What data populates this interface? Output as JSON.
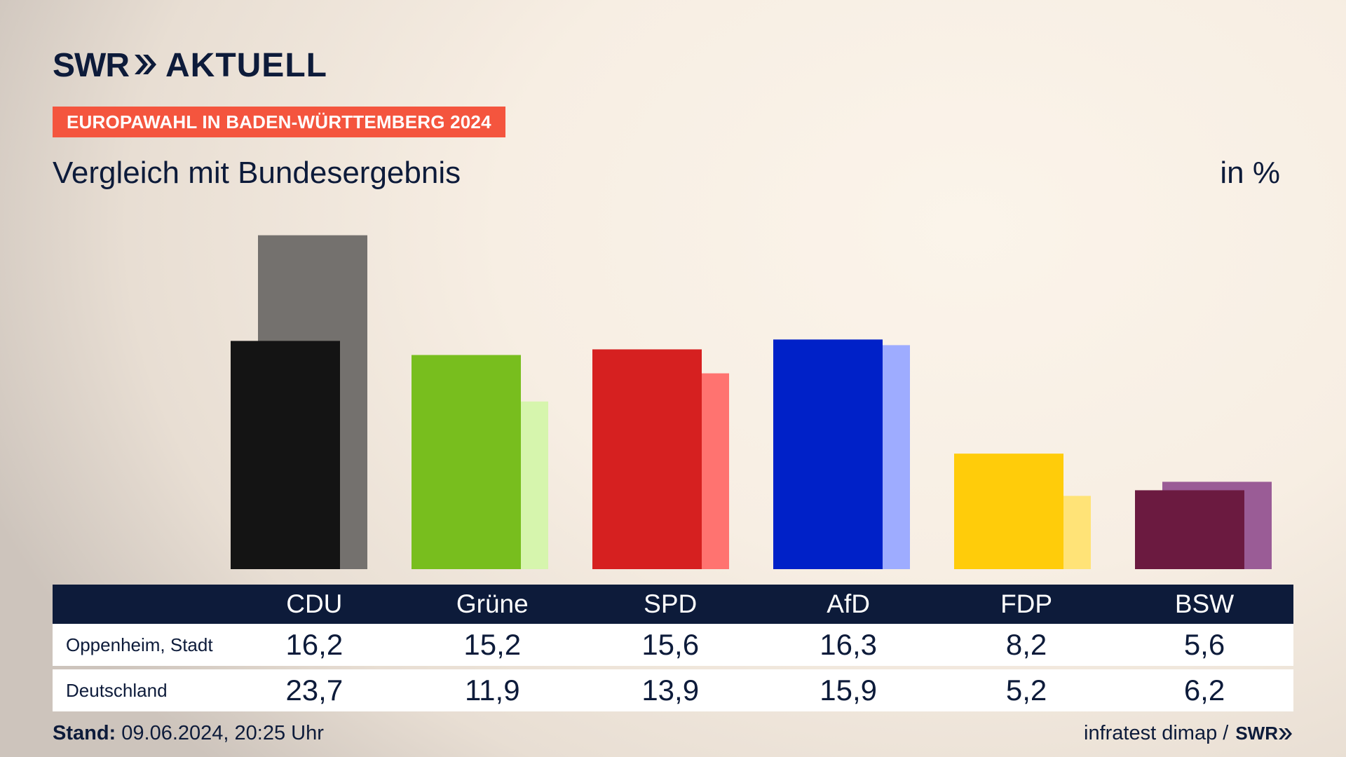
{
  "brand": {
    "logo_left": "SWR",
    "logo_right": "AKTUELL"
  },
  "badge": "EUROPAWAHL IN BADEN-WÜRTTEMBERG 2024",
  "subtitle": "Vergleich mit Bundesergebnis",
  "unit": "in %",
  "table": {
    "rows": [
      {
        "label": "Oppenheim, Stadt",
        "values": [
          "16,2",
          "15,2",
          "15,6",
          "16,3",
          "8,2",
          "5,6"
        ]
      },
      {
        "label": "Deutschland",
        "values": [
          "23,7",
          "11,9",
          "13,9",
          "15,9",
          "5,2",
          "6,2"
        ]
      }
    ]
  },
  "footer": {
    "stand_label": "Stand:",
    "stand_value": "09.06.2024, 20:25 Uhr",
    "source": "infratest dimap /",
    "source_logo": "SWR"
  },
  "chart_data": {
    "type": "bar",
    "categories": [
      "CDU",
      "Grüne",
      "SPD",
      "AfD",
      "FDP",
      "BSW"
    ],
    "series": [
      {
        "name": "Oppenheim, Stadt",
        "values": [
          16.2,
          15.2,
          15.6,
          16.3,
          8.2,
          5.6
        ]
      },
      {
        "name": "Deutschland",
        "values": [
          23.7,
          11.9,
          13.9,
          15.9,
          5.2,
          6.2
        ]
      }
    ],
    "colors_primary": [
      "#141414",
      "#78be1e",
      "#d62020",
      "#0021c8",
      "#ffcc0a",
      "#6b1a40"
    ],
    "colors_secondary": [
      "#74716e",
      "#d6f5ad",
      "#ff7370",
      "#9eacff",
      "#ffe377",
      "#9a5c96"
    ]
  }
}
